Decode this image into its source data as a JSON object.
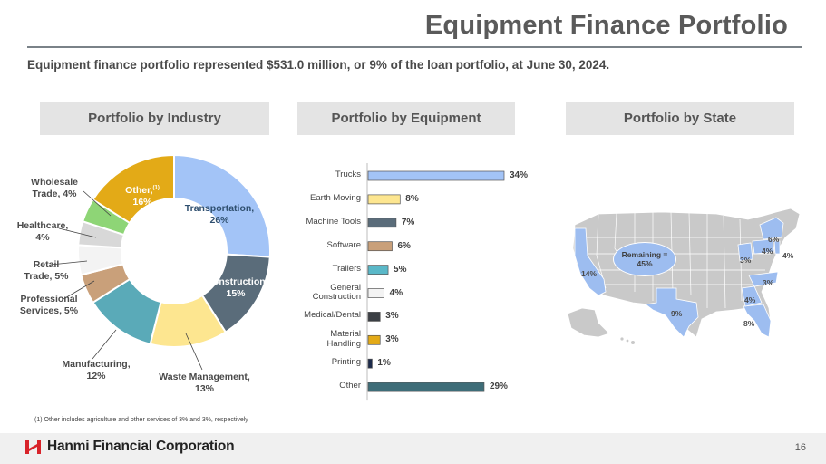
{
  "header": {
    "title": "Equipment Finance Portfolio",
    "subtitle": "Equipment finance portfolio represented $531.0 million, or 9% of the loan portfolio, at June 30, 2024."
  },
  "sections": {
    "industry": "Portfolio by Industry",
    "equipment": "Portfolio by Equipment",
    "state": "Portfolio by State"
  },
  "chart_data": [
    {
      "type": "pie",
      "title": "Portfolio by Industry",
      "slices": [
        {
          "label": "Transportation, 26%",
          "line1": "Transportation,",
          "line2": "26%",
          "value": 26,
          "color": "#a3c4f7"
        },
        {
          "label": "Construction 15%",
          "line1": "Construction",
          "line2": "15%",
          "value": 15,
          "color": "#5a6c7a"
        },
        {
          "label": "Waste Management, 13%",
          "line1": "Waste Management,",
          "line2": "13%",
          "value": 13,
          "color": "#fde690"
        },
        {
          "label": "Manufacturing, 12%",
          "line1": "Manufacturing,",
          "line2": "12%",
          "value": 12,
          "color": "#5aaab8"
        },
        {
          "label": "Professional Services, 5%",
          "line1": "Professional",
          "line2": "Services, 5%",
          "value": 5,
          "color": "#c9a07a"
        },
        {
          "label": "Retail Trade, 5%",
          "line1": "Retail",
          "line2": "Trade, 5%",
          "value": 5,
          "color": "#f3f3f3"
        },
        {
          "label": "Healthcare, 4%",
          "line1": "Healthcare,",
          "line2": "4%",
          "value": 4,
          "color": "#d8d8d8"
        },
        {
          "label": "Wholesale Trade, 4%",
          "line1": "Wholesale",
          "line2": "Trade, 4%",
          "value": 4,
          "color": "#8ed576"
        },
        {
          "label": "Other, 16%",
          "line1": "Other,",
          "line2": "16%",
          "sup": "(1)",
          "value": 16,
          "color": "#e3aa17"
        }
      ]
    },
    {
      "type": "bar",
      "orientation": "horizontal",
      "title": "Portfolio by Equipment",
      "categories": [
        "Trucks",
        "Earth Moving",
        "Machine Tools",
        "Software",
        "Trailers",
        "General Construction",
        "Medical/Dental",
        "Material Handling",
        "Printing",
        "Other"
      ],
      "values": [
        34,
        8,
        7,
        6,
        5,
        4,
        3,
        3,
        1,
        29
      ],
      "value_labels": [
        "34%",
        "8%",
        "7%",
        "6%",
        "5%",
        "4%",
        "3%",
        "3%",
        "1%",
        "29%"
      ],
      "colors": [
        "#a3c4f7",
        "#fde690",
        "#5a6c7a",
        "#c9a07a",
        "#5ab8c8",
        "#f3f3f3",
        "#3b3f44",
        "#e3aa17",
        "#1c2a4a",
        "#3e6d78"
      ],
      "xlim": [
        0,
        34
      ]
    }
  ],
  "map": {
    "remaining_line1": "Remaining =",
    "remaining_line2": "45%",
    "labels": {
      "ca": "14%",
      "tx": "9%",
      "fl": "8%",
      "ga": "4%",
      "nc": "3%",
      "oh": "3%",
      "pa": "4%",
      "ny": "6%",
      "nj": "4%"
    },
    "highlight_color": "#9dbdf0",
    "base_color": "#c9c9c9"
  },
  "footnote": "(1)    Other includes agriculture and other services of 3% and 3%, respectively",
  "footer": {
    "company": "Hanmi Financial Corporation",
    "page": "16"
  },
  "colors": {
    "title": "#5a5a5a",
    "header_bg": "#e4e4e4",
    "brand_red": "#d8232a"
  }
}
